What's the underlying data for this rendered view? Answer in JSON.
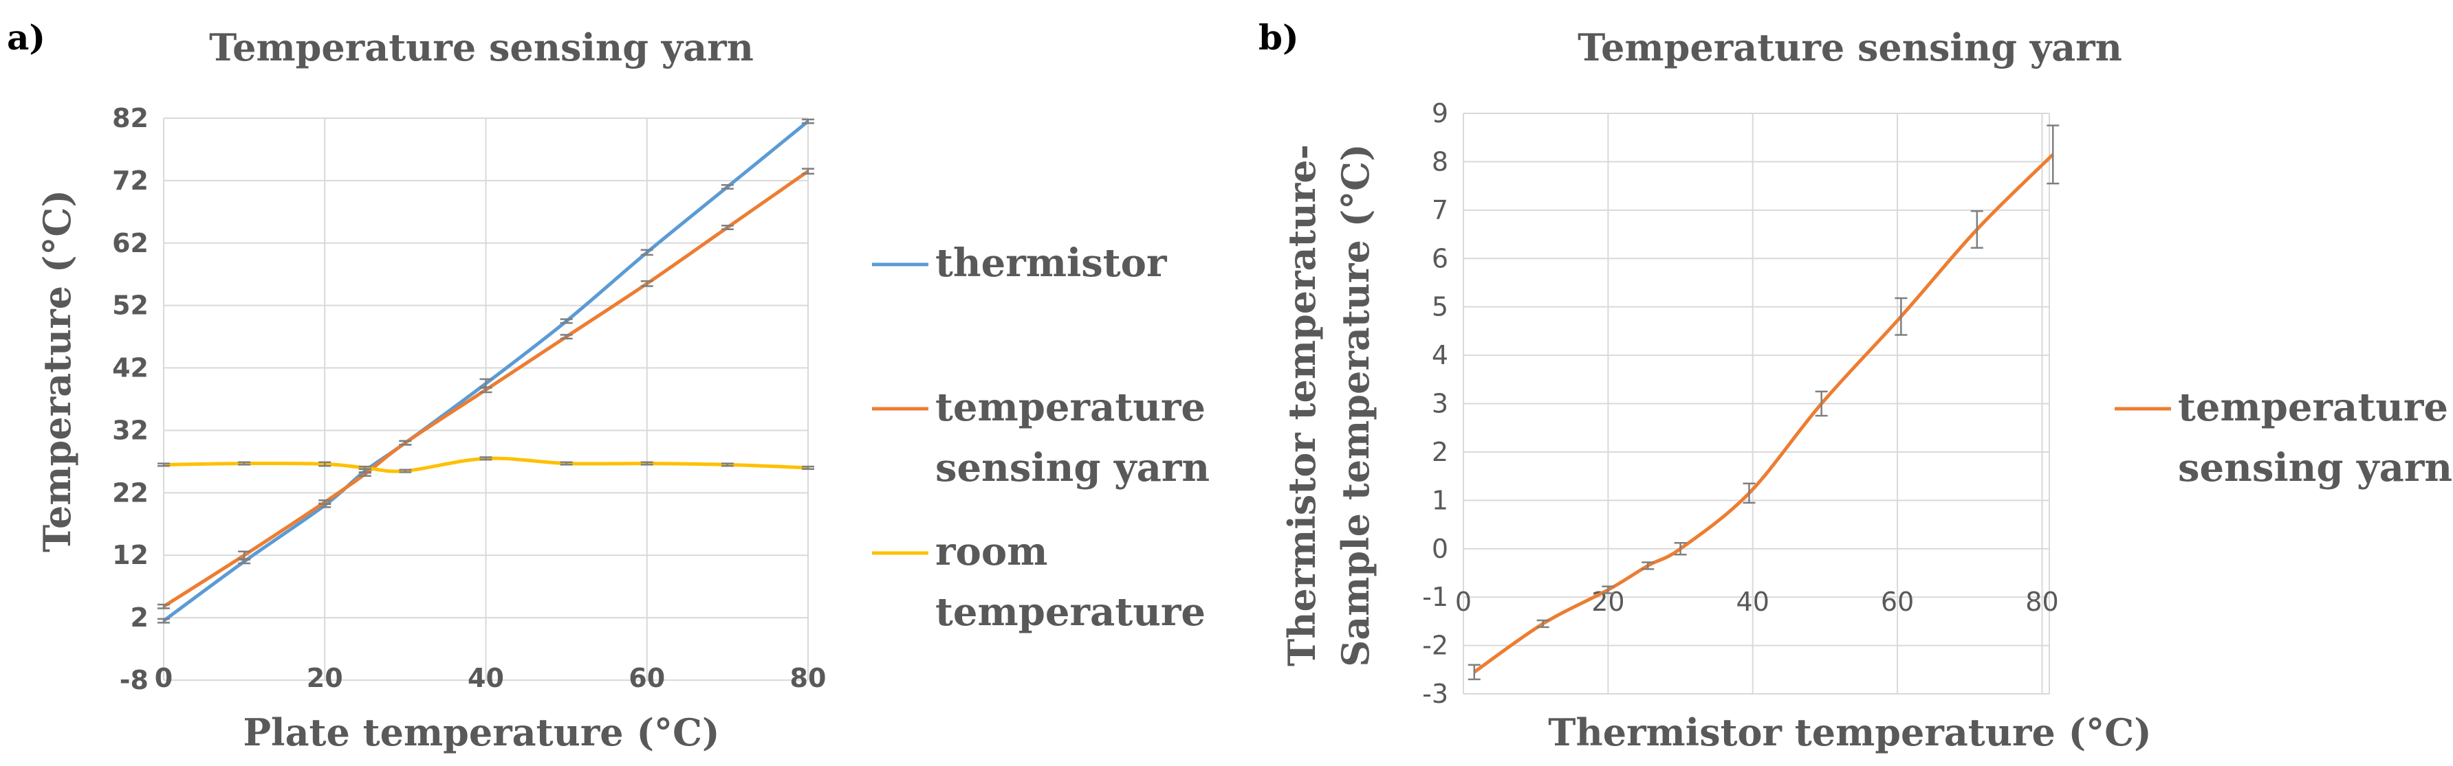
{
  "colors": {
    "thermistor": "#5b9bd5",
    "yarn": "#ed7d31",
    "room": "#ffc000",
    "errorbar": "#7f7f7f"
  },
  "chart_data": [
    {
      "panel": "a)",
      "type": "line",
      "title": "Temperature sensing yarn",
      "xlabel": "Plate temperature (°C)",
      "ylabel": "Temperature (°C)",
      "xlim": [
        0,
        80
      ],
      "ylim": [
        -8,
        82
      ],
      "xticks": [
        0,
        20,
        40,
        60,
        80
      ],
      "yticks": [
        -8,
        2,
        12,
        22,
        32,
        42,
        52,
        62,
        72,
        82
      ],
      "legend_position": "right",
      "series": [
        {
          "name": "thermistor",
          "x": [
            0,
            10,
            20,
            25,
            30,
            40,
            50,
            60,
            70,
            80
          ],
          "y": [
            1.5,
            11,
            20,
            25.5,
            30,
            39.5,
            49.5,
            60.5,
            71,
            81.5
          ],
          "err": [
            0.3,
            0.3,
            0.3,
            0.3,
            0.3,
            0.7,
            0.3,
            0.4,
            0.3,
            0.3
          ]
        },
        {
          "name": "temperature\nsensing yarn",
          "name_lines": [
            "temperature",
            "sensing yarn"
          ],
          "x": [
            0,
            10,
            20,
            25,
            30,
            40,
            50,
            60,
            70,
            80
          ],
          "y": [
            3.8,
            12,
            20.5,
            25,
            30,
            38.5,
            47,
            55.5,
            64.5,
            73.5
          ],
          "err": [
            0.3,
            0.6,
            0.3,
            0.3,
            0.3,
            0.4,
            0.3,
            0.4,
            0.3,
            0.4
          ]
        },
        {
          "name": "room\ntemperature",
          "name_lines": [
            "room",
            "temperature"
          ],
          "x": [
            0,
            10,
            20,
            25,
            30,
            40,
            50,
            60,
            70,
            80
          ],
          "y": [
            26.5,
            26.7,
            26.6,
            26,
            25.5,
            27.5,
            26.7,
            26.7,
            26.5,
            26
          ],
          "err": [
            0.2,
            0.2,
            0.3,
            0.2,
            0.2,
            0.2,
            0.2,
            0.2,
            0.2,
            0.2
          ]
        }
      ]
    },
    {
      "panel": "b)",
      "type": "line",
      "title": "Temperature sensing yarn",
      "xlabel": "Thermistor temperature (°C)",
      "ylabel_lines": [
        "Thermistor temperature-",
        "Sample temperature (°C)"
      ],
      "xlim": [
        0,
        81
      ],
      "ylim": [
        -3,
        9
      ],
      "xticks": [
        0,
        20,
        40,
        60,
        80
      ],
      "yticks": [
        -3,
        -2,
        -1,
        0,
        1,
        2,
        3,
        4,
        5,
        6,
        7,
        8,
        9
      ],
      "legend_position": "right",
      "series": [
        {
          "name": "temperature\nsensing yarn",
          "name_lines": [
            "temperature",
            "sensing yarn"
          ],
          "x": [
            1.5,
            11,
            20,
            25.5,
            30,
            39.5,
            49.5,
            60.5,
            71,
            81.5
          ],
          "y": [
            -2.55,
            -1.55,
            -0.85,
            -0.35,
            0,
            1.15,
            3,
            4.8,
            6.6,
            8.15
          ],
          "err": [
            0.15,
            0.07,
            0.07,
            0.07,
            0.12,
            0.2,
            0.25,
            0.38,
            0.38,
            0.6
          ]
        }
      ]
    }
  ]
}
